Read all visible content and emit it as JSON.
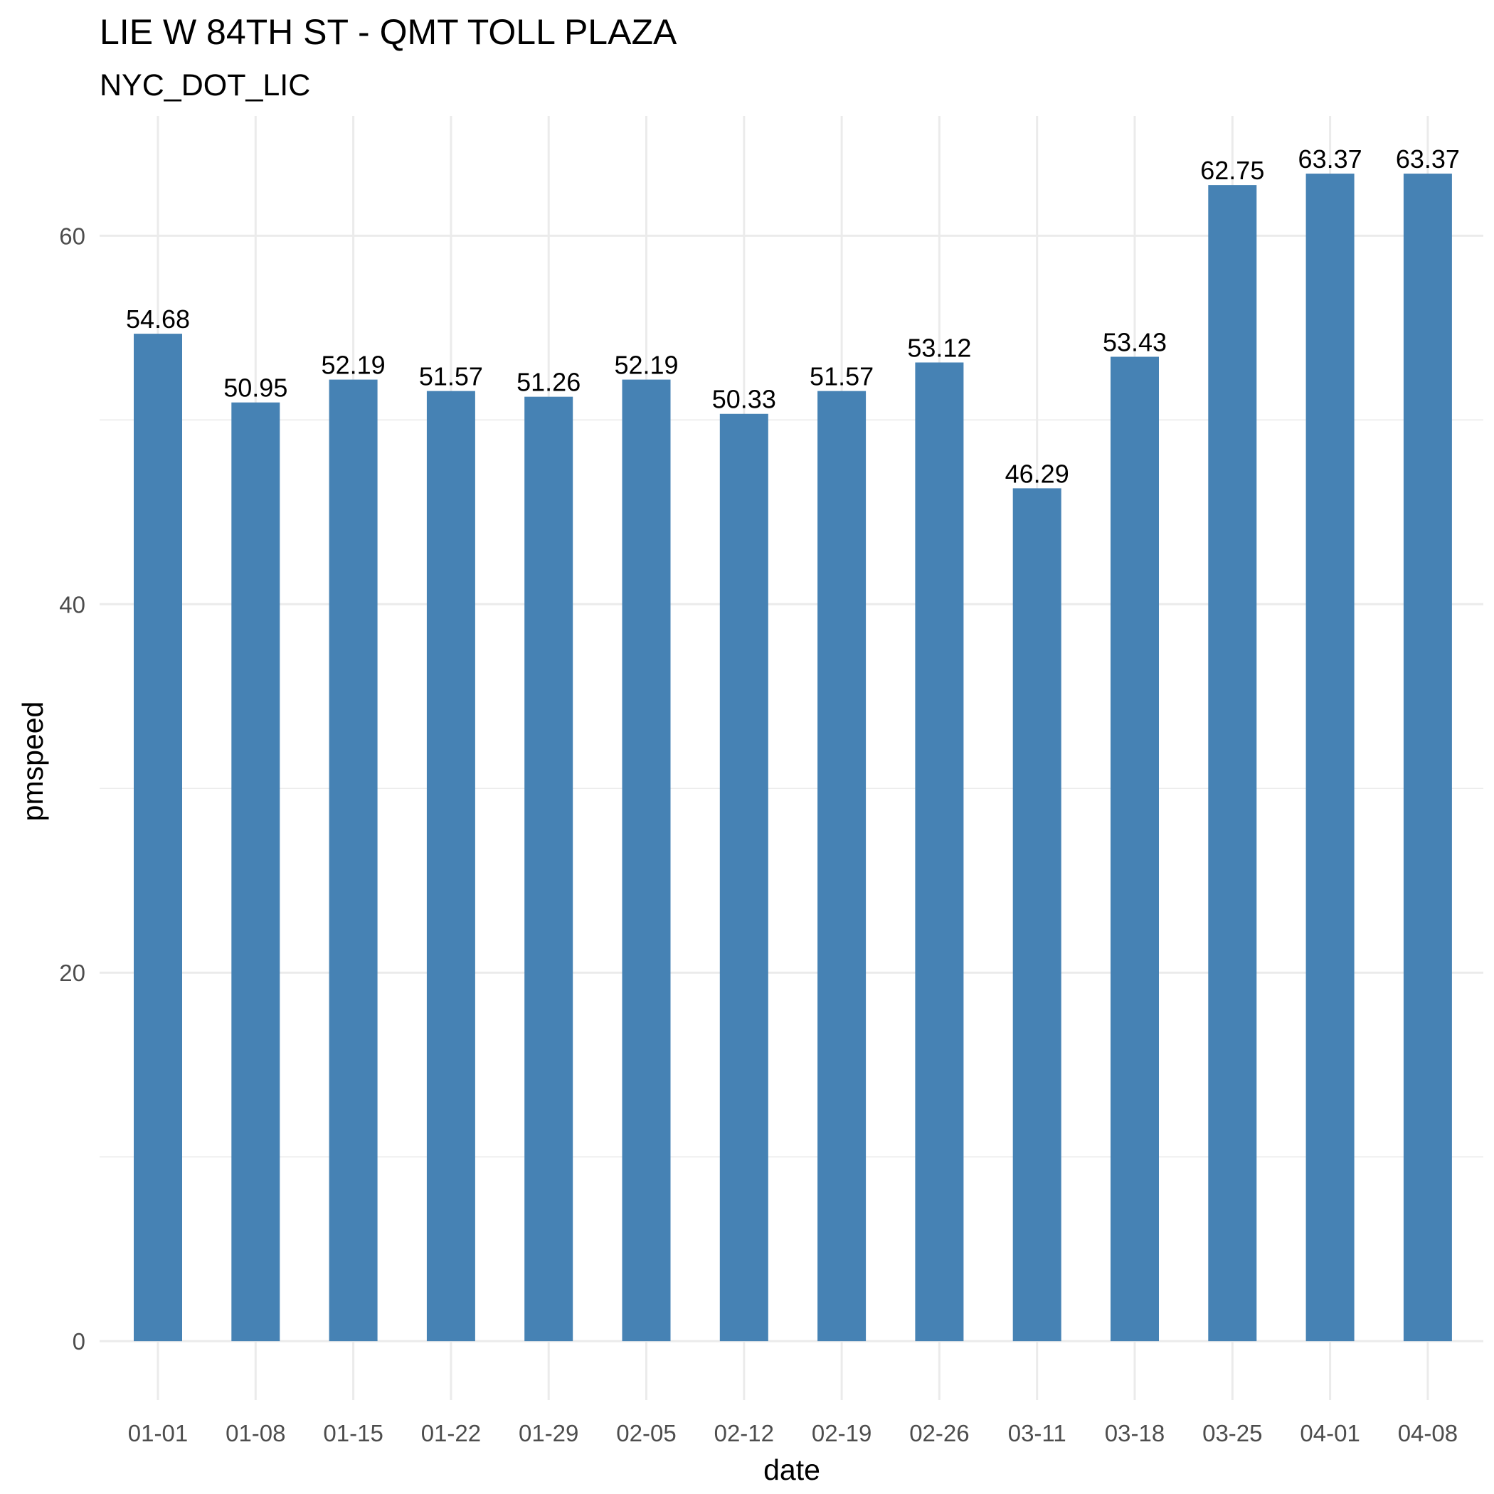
{
  "chart_data": {
    "type": "bar",
    "title": "LIE W 84TH ST - QMT TOLL PLAZA",
    "subtitle": "NYC_DOT_LIC",
    "xlabel": "date",
    "ylabel": "pmspeed",
    "categories": [
      "01-01",
      "01-08",
      "01-15",
      "01-22",
      "01-29",
      "02-05",
      "02-12",
      "02-19",
      "02-26",
      "03-11",
      "03-18",
      "03-25",
      "04-01",
      "04-08"
    ],
    "values": [
      54.68,
      50.95,
      52.19,
      51.57,
      51.26,
      52.19,
      50.33,
      51.57,
      53.12,
      46.29,
      53.43,
      62.75,
      63.37,
      63.37
    ],
    "value_labels": [
      "54.68",
      "50.95",
      "52.19",
      "51.57",
      "51.26",
      "52.19",
      "50.33",
      "51.57",
      "53.12",
      "46.29",
      "53.43",
      "62.75",
      "63.37",
      "63.37"
    ],
    "yticks": [
      0,
      20,
      40,
      60
    ],
    "ytick_labels": [
      "0",
      "20",
      "40",
      "60"
    ],
    "ylim": [
      -3.2,
      66.5
    ],
    "grid": true,
    "bar_color": "#4682B4",
    "grid_color": "#EBEBEB"
  }
}
